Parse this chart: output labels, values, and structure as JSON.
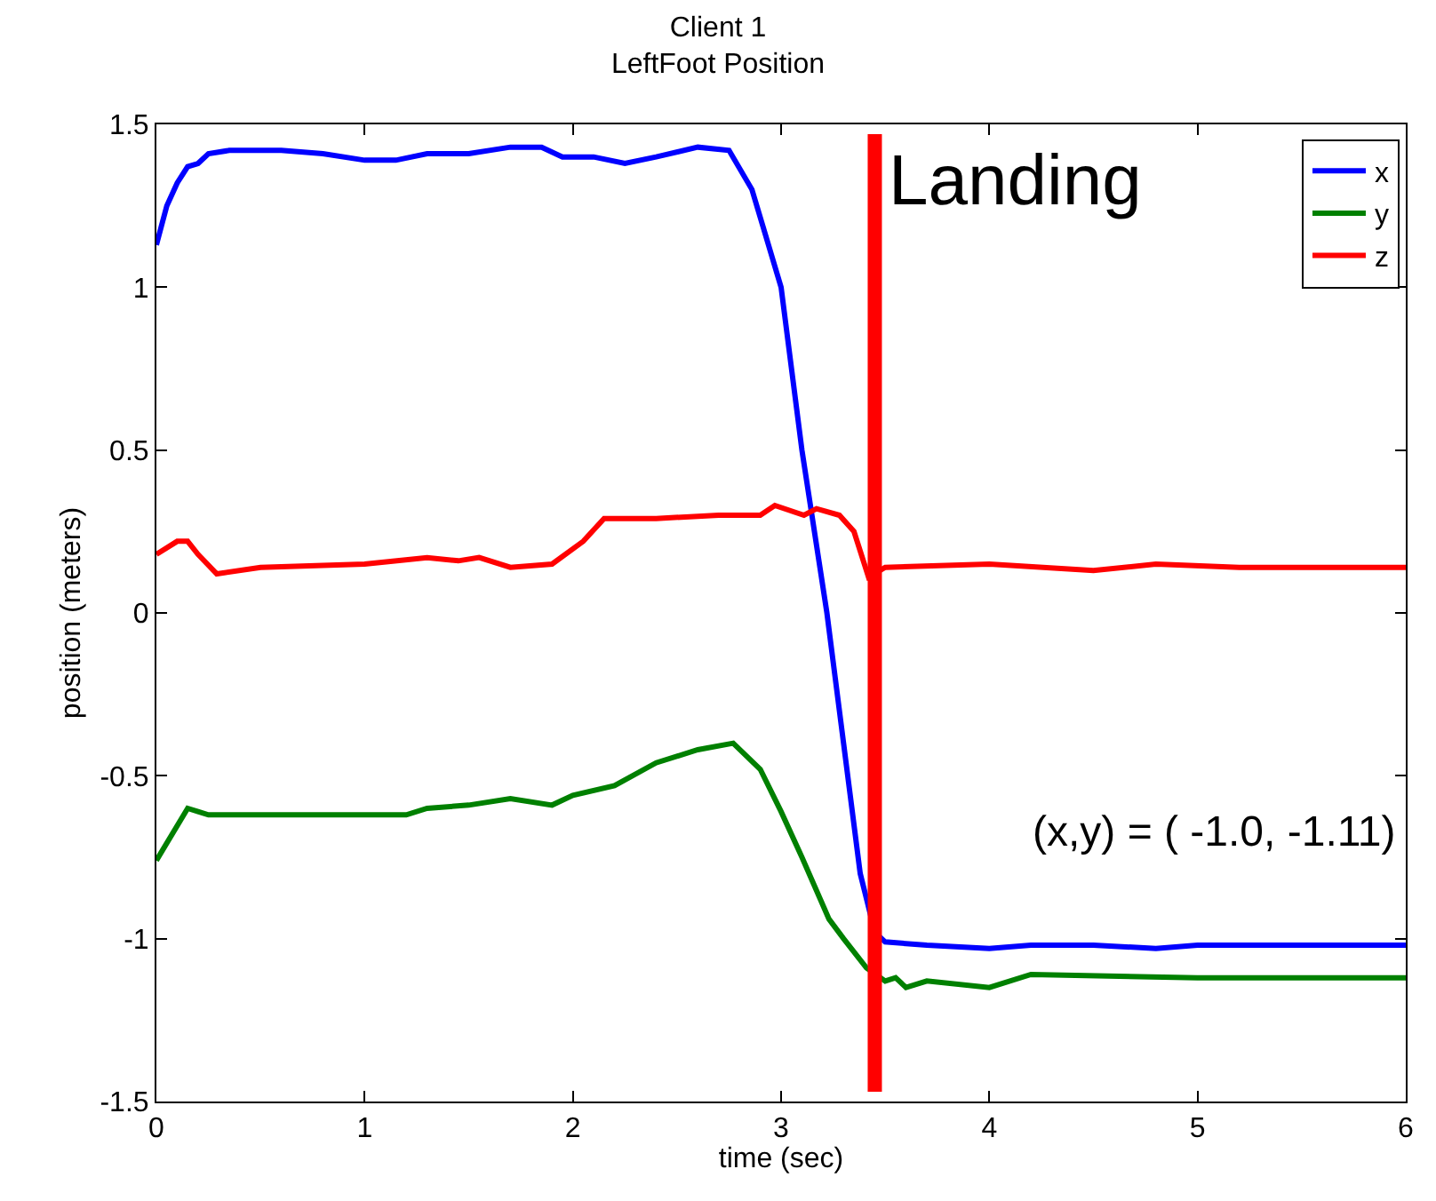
{
  "chart_data": {
    "type": "line",
    "title": "Client 1\nLeftFoot Position",
    "xlabel": "time (sec)",
    "ylabel": "position (meters)",
    "xlim": [
      0,
      6
    ],
    "xticks": [
      0,
      1,
      2,
      3,
      4,
      5,
      6
    ],
    "ylim": [
      -1.5,
      1.5
    ],
    "yticks": [
      -1.5,
      -1,
      -0.5,
      0,
      0.5,
      1,
      1.5
    ],
    "legend": "top right",
    "marker": "none",
    "line_style": "solid",
    "series": [
      {
        "name": "x",
        "color": "#0000ff",
        "x": [
          0,
          0.05,
          0.1,
          0.15,
          0.2,
          0.25,
          0.35,
          0.6,
          0.8,
          1.0,
          1.15,
          1.3,
          1.5,
          1.7,
          1.85,
          1.95,
          2.1,
          2.25,
          2.4,
          2.6,
          2.75,
          2.86,
          3.0,
          3.1,
          3.22,
          3.3,
          3.38,
          3.45,
          3.5,
          3.7,
          4.0,
          4.2,
          4.5,
          4.8,
          5.0,
          5.5,
          6.0
        ],
        "values": [
          1.13,
          1.25,
          1.32,
          1.37,
          1.38,
          1.41,
          1.42,
          1.42,
          1.41,
          1.39,
          1.39,
          1.41,
          1.41,
          1.43,
          1.43,
          1.4,
          1.4,
          1.38,
          1.4,
          1.43,
          1.42,
          1.3,
          1.0,
          0.5,
          0,
          -0.4,
          -0.8,
          -0.98,
          -1.01,
          -1.02,
          -1.03,
          -1.02,
          -1.02,
          -1.03,
          -1.02,
          -1.02,
          -1.02
        ]
      },
      {
        "name": "y",
        "color": "#008000",
        "x": [
          0,
          0.15,
          0.2,
          0.25,
          1.0,
          1.2,
          1.3,
          1.5,
          1.7,
          1.9,
          2.0,
          2.2,
          2.4,
          2.6,
          2.77,
          2.9,
          3.0,
          3.1,
          3.23,
          3.3,
          3.41,
          3.5,
          3.55,
          3.6,
          3.7,
          4.0,
          4.2,
          5.0,
          6.0
        ],
        "values": [
          -0.76,
          -0.6,
          -0.61,
          -0.62,
          -0.62,
          -0.62,
          -0.6,
          -0.59,
          -0.57,
          -0.59,
          -0.56,
          -0.53,
          -0.46,
          -0.42,
          -0.4,
          -0.48,
          -0.61,
          -0.75,
          -0.94,
          -1.0,
          -1.09,
          -1.13,
          -1.12,
          -1.15,
          -1.13,
          -1.15,
          -1.11,
          -1.12,
          -1.12
        ]
      },
      {
        "name": "z",
        "color": "#ff0000",
        "x": [
          0,
          0.1,
          0.15,
          0.2,
          0.29,
          0.5,
          1.0,
          1.3,
          1.45,
          1.55,
          1.7,
          1.9,
          2.05,
          2.15,
          2.4,
          2.7,
          2.9,
          2.97,
          3.11,
          3.17,
          3.28,
          3.35,
          3.42,
          3.5,
          4.0,
          4.5,
          4.8,
          5.2,
          6.0
        ],
        "values": [
          0.18,
          0.22,
          0.22,
          0.18,
          0.12,
          0.14,
          0.15,
          0.17,
          0.16,
          0.17,
          0.14,
          0.15,
          0.22,
          0.29,
          0.29,
          0.3,
          0.3,
          0.33,
          0.3,
          0.32,
          0.3,
          0.25,
          0.11,
          0.14,
          0.15,
          0.13,
          0.15,
          0.14,
          0.14
        ]
      }
    ],
    "ref_lines": [
      {
        "axis": "x",
        "value": 3.45,
        "label": "Landing",
        "color": "#ff0000",
        "line_style": "solid"
      }
    ],
    "annotations": [
      "(x,y) = ( -1.0, -1.11)"
    ]
  }
}
